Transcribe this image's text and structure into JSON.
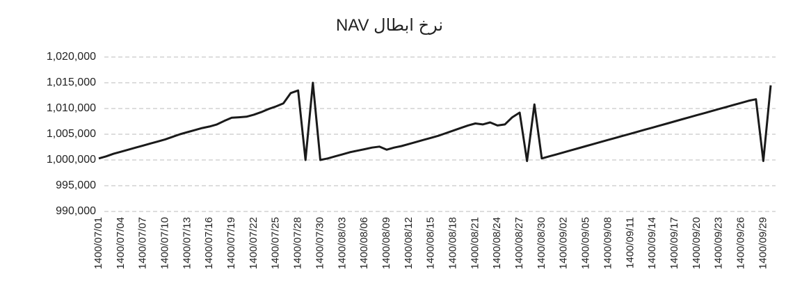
{
  "chart_data": {
    "type": "line",
    "title": "نرخ ابطال NAV",
    "categories": [
      "1400/07/01",
      null,
      null,
      "1400/07/04",
      null,
      null,
      "1400/07/07",
      null,
      null,
      "1400/07/10",
      null,
      null,
      "1400/07/13",
      null,
      null,
      "1400/07/16",
      null,
      null,
      "1400/07/19",
      null,
      null,
      "1400/07/22",
      null,
      null,
      "1400/07/25",
      null,
      null,
      "1400/07/28",
      null,
      null,
      "1400/07/30",
      null,
      null,
      "1400/08/03",
      null,
      null,
      "1400/08/06",
      null,
      null,
      "1400/08/09",
      null,
      null,
      "1400/08/12",
      null,
      null,
      "1400/08/15",
      null,
      null,
      "1400/08/18",
      null,
      null,
      "1400/08/21",
      null,
      null,
      "1400/08/24",
      null,
      null,
      "1400/08/27",
      null,
      null,
      "1400/08/30",
      null,
      null,
      "1400/09/02",
      null,
      null,
      "1400/09/05",
      null,
      null,
      "1400/09/08",
      null,
      null,
      "1400/09/11",
      null,
      null,
      "1400/09/14",
      null,
      null,
      "1400/09/17",
      null,
      null,
      "1400/09/20",
      null,
      null,
      "1400/09/23",
      null,
      null,
      "1400/09/26",
      null,
      null,
      "1400/09/29",
      null
    ],
    "values": [
      1000300,
      1000700,
      1001200,
      1001600,
      1002000,
      1002400,
      1002800,
      1003200,
      1003600,
      1004000,
      1004500,
      1005000,
      1005400,
      1005800,
      1006200,
      1006500,
      1006900,
      1007600,
      1008200,
      1008300,
      1008400,
      1008800,
      1009300,
      1009900,
      1010400,
      1011000,
      1013000,
      1013500,
      1000000,
      1015000,
      1000000,
      1000300,
      1000700,
      1001100,
      1001500,
      1001800,
      1002100,
      1002400,
      1002600,
      1002000,
      1002400,
      1002700,
      1003100,
      1003500,
      1003900,
      1004300,
      1004700,
      1005200,
      1005700,
      1006200,
      1006700,
      1007100,
      1006900,
      1007300,
      1006700,
      1006900,
      1008300,
      1009200,
      999800,
      1010800,
      1000300,
      1000700,
      1001100,
      1001500,
      1001900,
      1002300,
      1002700,
      1003100,
      1003500,
      1003900,
      1004300,
      1004700,
      1005100,
      1005500,
      1005900,
      1006300,
      1006700,
      1007100,
      1007500,
      1007900,
      1008300,
      1008700,
      1009100,
      1009500,
      1009900,
      1010300,
      1010700,
      1011100,
      1011500,
      1011800,
      999800,
      1014500
    ],
    "color": "#1a1a1a",
    "ylim": [
      990000,
      1020000
    ],
    "yticks": [
      {
        "value": 990000,
        "label": "990,000"
      },
      {
        "value": 995000,
        "label": "995,000"
      },
      {
        "value": 1000000,
        "label": "1,000,000"
      },
      {
        "value": 1005000,
        "label": "1,005,000"
      },
      {
        "value": 1010000,
        "label": "1,010,000"
      },
      {
        "value": 1015000,
        "label": "1,015,000"
      },
      {
        "value": 1020000,
        "label": "1,020,000"
      }
    ],
    "grid": true
  }
}
